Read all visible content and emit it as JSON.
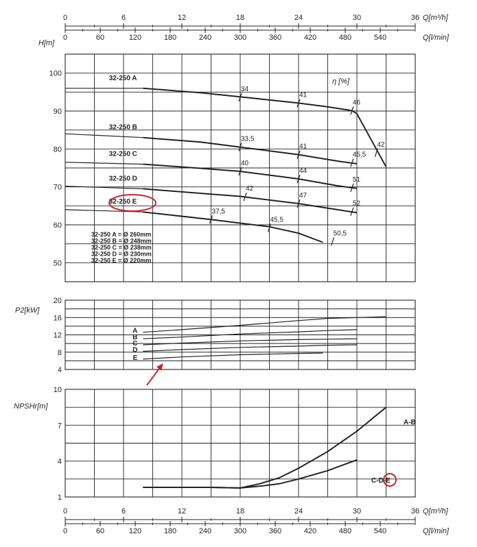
{
  "colors": {
    "ink": "#222222",
    "highlight": "#c0282d"
  },
  "axes": {
    "q_m3h": {
      "label": "Q[m³/h]",
      "ticks": [
        "0",
        "6",
        "12",
        "18",
        "24",
        "30",
        "36"
      ]
    },
    "q_lmin": {
      "label": "Q[l/min]",
      "ticks": [
        "0",
        "60",
        "120",
        "180",
        "240",
        "300",
        "360",
        "420",
        "480",
        "540"
      ]
    }
  },
  "chart_data": [
    {
      "type": "line",
      "ylabel": "H[m]",
      "xlabel": "Q[m³/h]",
      "xlim": [
        0,
        36
      ],
      "ylim": [
        45,
        105
      ],
      "yticks": [
        "50",
        "60",
        "70",
        "80",
        "90",
        "100"
      ],
      "efficiency_label": "η [%]",
      "series": [
        {
          "name": "32-250 A",
          "x": [
            0,
            8,
            14,
            20,
            24,
            27,
            29.5,
            30,
            33
          ],
          "y": [
            96,
            96,
            94.8,
            93.2,
            92.1,
            91.1,
            90.1,
            89.3,
            75.3
          ]
        },
        {
          "name": "32-250 B",
          "x": [
            0,
            8,
            14,
            18,
            24,
            28,
            30
          ],
          "y": [
            84,
            83,
            81.8,
            80.5,
            78.5,
            76.8,
            76.1
          ]
        },
        {
          "name": "32-250 C",
          "x": [
            0,
            8,
            14,
            18,
            24,
            28,
            30
          ],
          "y": [
            76.5,
            76,
            74.9,
            74.1,
            72.1,
            70.3,
            69.6
          ]
        },
        {
          "name": "32-250 D",
          "x": [
            0,
            8,
            14,
            18,
            24,
            28,
            30
          ],
          "y": [
            70.2,
            69.5,
            68.3,
            67.5,
            65.6,
            64,
            63.2
          ]
        },
        {
          "name": "32-250 E",
          "x": [
            0,
            8,
            15,
            21,
            24,
            26.5
          ],
          "y": [
            64,
            63.4,
            61.4,
            59.5,
            57.8,
            55.4
          ]
        }
      ],
      "efficiency_marks": [
        {
          "label": "34",
          "x": 18,
          "y": 93.6
        },
        {
          "label": "41",
          "x": 24,
          "y": 92.1
        },
        {
          "label": "46",
          "x": 29.5,
          "y": 90.1
        },
        {
          "label": "42",
          "x": 32,
          "y": 79
        },
        {
          "label": "33,5",
          "x": 18,
          "y": 80.5
        },
        {
          "label": "41",
          "x": 24,
          "y": 78.5
        },
        {
          "label": "45,5",
          "x": 29.5,
          "y": 76.4
        },
        {
          "label": "40",
          "x": 18,
          "y": 74.1
        },
        {
          "label": "44",
          "x": 24,
          "y": 72.1
        },
        {
          "label": "51",
          "x": 29.5,
          "y": 69.8
        },
        {
          "label": "42",
          "x": 18.5,
          "y": 67.4
        },
        {
          "label": "47",
          "x": 24,
          "y": 65.6
        },
        {
          "label": "52",
          "x": 29.5,
          "y": 63.5
        },
        {
          "label": "37,5",
          "x": 15,
          "y": 61.4
        },
        {
          "label": "45,5",
          "x": 21,
          "y": 59.2
        },
        {
          "label": "50,5",
          "x": 27.5,
          "y": 55.6
        }
      ],
      "diameters": [
        "32-250 A = Ø 260mm",
        "32-250 B = Ø 248mm",
        "32-250 C = Ø 238mm",
        "32-250 D = Ø 230mm",
        "32-250 E = Ø 220mm"
      ],
      "highlighted_series": "32-250 E"
    },
    {
      "type": "line",
      "ylabel": "P2[kW]",
      "xlabel": "Q[m³/h]",
      "xlim": [
        0,
        36
      ],
      "ylim": [
        4,
        20
      ],
      "yticks": [
        "4",
        "8",
        "12",
        "16",
        "20"
      ],
      "series": [
        {
          "name": "A",
          "x": [
            8,
            12,
            18,
            24,
            27,
            30,
            33
          ],
          "y": [
            12.6,
            13.2,
            14.2,
            15.3,
            15.8,
            16,
            16.2
          ]
        },
        {
          "name": "B",
          "x": [
            8,
            12,
            18,
            24,
            27,
            30
          ],
          "y": [
            11.1,
            11.5,
            12.2,
            12.7,
            13,
            13.2
          ]
        },
        {
          "name": "C",
          "x": [
            8,
            12,
            18,
            24,
            27,
            30
          ],
          "y": [
            9.7,
            10.1,
            10.6,
            10.9,
            11,
            11.1
          ]
        },
        {
          "name": "D",
          "x": [
            8,
            12,
            18,
            24,
            27,
            30
          ],
          "y": [
            8.2,
            8.6,
            9.1,
            9.4,
            9.6,
            9.7
          ]
        },
        {
          "name": "E",
          "x": [
            8,
            12,
            18,
            24,
            26.5
          ],
          "y": [
            6.4,
            6.9,
            7.4,
            7.7,
            7.8
          ]
        }
      ]
    },
    {
      "type": "line",
      "ylabel": "NPSHr[m]",
      "xlabel": "Q[m³/h]",
      "xlim": [
        0,
        36
      ],
      "ylim": [
        1,
        10
      ],
      "yticks": [
        "1",
        "4",
        "7",
        "10"
      ],
      "series": [
        {
          "name": "A-B",
          "x": [
            8,
            12,
            15,
            18,
            20,
            22,
            24,
            27,
            30,
            33
          ],
          "y": [
            1.8,
            1.8,
            1.8,
            1.75,
            2.1,
            2.6,
            3.4,
            4.8,
            6.5,
            8.5
          ]
        },
        {
          "name": "C-D-E",
          "x": [
            8,
            12,
            15,
            18,
            20,
            22,
            24,
            27,
            30
          ],
          "y": [
            1.8,
            1.8,
            1.8,
            1.75,
            1.9,
            2.1,
            2.5,
            3.2,
            4.1
          ]
        }
      ],
      "highlighted_series": "C-D-E"
    }
  ]
}
